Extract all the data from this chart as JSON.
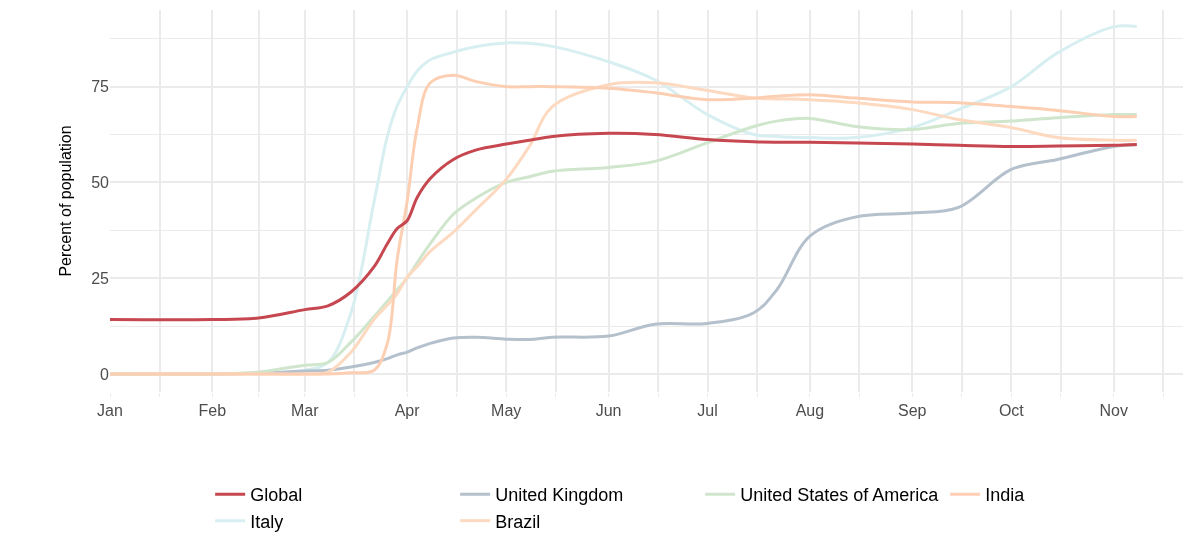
{
  "chart_data": {
    "type": "line",
    "ylabel": "Percent of population",
    "x": [
      "--01-01",
      "--02-01",
      "--02-15",
      "--03-01",
      "--03-08",
      "--03-15",
      "--03-22",
      "--03-26",
      "--03-29",
      "--04-01",
      "--04-04",
      "--04-08",
      "--04-15",
      "--04-22",
      "--05-01",
      "--05-08",
      "--05-15",
      "--06-01",
      "--06-15",
      "--07-01",
      "--07-15",
      "--07-22",
      "--08-01",
      "--08-15",
      "--09-01",
      "--09-15",
      "--10-01",
      "--10-15",
      "--11-01",
      "--11-08"
    ],
    "series": [
      {
        "name": "Italy",
        "color": "#d8eff2",
        "values": [
          0,
          0,
          0.3,
          1,
          3,
          16,
          45,
          62,
          70,
          75,
          79,
          82,
          84,
          85.5,
          86.4,
          86.3,
          85.5,
          81.5,
          76.8,
          67.7,
          62.5,
          62,
          61.7,
          61.7,
          64.3,
          69,
          75,
          83.8,
          90.6,
          90.7
        ]
      },
      {
        "name": "United Kingdom",
        "color": "#b4c0cc",
        "values": [
          0,
          0,
          0.2,
          0.8,
          1,
          1.8,
          3,
          4,
          5,
          5.7,
          6.8,
          8,
          9.4,
          9.6,
          9.1,
          9,
          9.6,
          9.9,
          13,
          13.2,
          16,
          22,
          36,
          41,
          42,
          43.5,
          53.4,
          56,
          59.4,
          59.8
        ]
      },
      {
        "name": "United States of America",
        "color": "#cfe6cc",
        "values": [
          0,
          0,
          0.5,
          2.3,
          3,
          8.3,
          15,
          19,
          22,
          25,
          29,
          34,
          41.7,
          46,
          50,
          51.5,
          52.9,
          53.9,
          55.5,
          60.4,
          64.6,
          66,
          66.7,
          64.6,
          63.8,
          65.4,
          66,
          66.9,
          67.7,
          67.7
        ]
      },
      {
        "name": "Brazil",
        "color": "#fdd9c0",
        "values": [
          0,
          0,
          0,
          0,
          0.5,
          5.7,
          14.3,
          18,
          21,
          25.3,
          28,
          32,
          37,
          43,
          50.8,
          59.4,
          69.8,
          75.5,
          76,
          74,
          72,
          71.8,
          71.6,
          70.8,
          69,
          66.4,
          64.3,
          61.7,
          61,
          61
        ]
      },
      {
        "name": "India",
        "color": "#fccfb3",
        "values": [
          0,
          0,
          0,
          0,
          0,
          0.3,
          1,
          8,
          30,
          45,
          64,
          76,
          78,
          76.3,
          75,
          75,
          75,
          74.6,
          73.4,
          71.6,
          72,
          72.5,
          72.9,
          72,
          71,
          70.8,
          69.8,
          68.8,
          67.2,
          67.2
        ]
      },
      {
        "name": "Global",
        "color": "#c6474f",
        "values": [
          14.2,
          14.2,
          14.6,
          16.8,
          17.8,
          21.4,
          28,
          34,
          38,
          40,
          46,
          51,
          56,
          58.5,
          60,
          61,
          62,
          62.8,
          62.5,
          61.2,
          60.6,
          60.5,
          60.5,
          60.3,
          60,
          59.7,
          59.4,
          59.5,
          59.7,
          59.9
        ]
      }
    ],
    "xlim": [
      "--01-01",
      "--11-22"
    ],
    "xticks": [
      {
        "value": "--01-01",
        "label": "Jan"
      },
      {
        "value": "--01-16",
        "label": null
      },
      {
        "value": "--02-01",
        "label": "Feb"
      },
      {
        "value": "--02-15",
        "label": null
      },
      {
        "value": "--03-01",
        "label": "Mar"
      },
      {
        "value": "--03-16",
        "label": null
      },
      {
        "value": "--04-01",
        "label": "Apr"
      },
      {
        "value": "--04-16",
        "label": null
      },
      {
        "value": "--05-01",
        "label": "May"
      },
      {
        "value": "--05-16",
        "label": null
      },
      {
        "value": "--06-01",
        "label": "Jun"
      },
      {
        "value": "--06-16",
        "label": null
      },
      {
        "value": "--07-01",
        "label": "Jul"
      },
      {
        "value": "--07-16",
        "label": null
      },
      {
        "value": "--08-01",
        "label": "Aug"
      },
      {
        "value": "--08-16",
        "label": null
      },
      {
        "value": "--09-01",
        "label": "Sep"
      },
      {
        "value": "--09-16",
        "label": null
      },
      {
        "value": "--10-01",
        "label": "Oct"
      },
      {
        "value": "--10-16",
        "label": null
      },
      {
        "value": "--11-01",
        "label": "Nov"
      },
      {
        "value": "--11-16",
        "label": null
      }
    ],
    "ylim": [
      -4.7,
      95
    ],
    "yticks": [
      0,
      25,
      50,
      75
    ],
    "grid": true,
    "legend": "bottom",
    "line_style": "solid"
  }
}
